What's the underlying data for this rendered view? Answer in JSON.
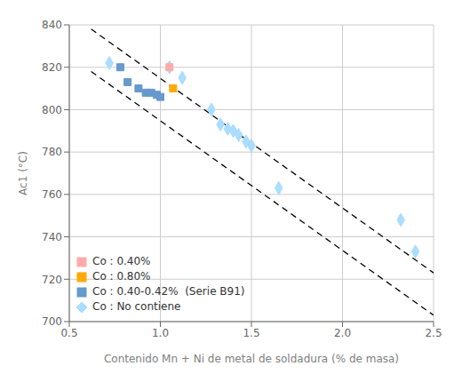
{
  "chart_data": {
    "type": "scatter",
    "xlabel": "Contenido Mn + Ni de metal de soldadura (% de masa)",
    "ylabel": "Ac1 (°C)",
    "xlim": [
      0.5,
      2.5
    ],
    "ylim": [
      700,
      840
    ],
    "xticks": [
      0.5,
      {
        "value": 1.0,
        "label": "1.0"
      },
      1.5,
      {
        "value": 2.0,
        "label": "2.0"
      },
      2.5
    ],
    "yticks": [
      700,
      720,
      740,
      760,
      780,
      800,
      820,
      840
    ],
    "grid": true,
    "legend": "lower left",
    "series": [
      {
        "name": "Co : 0.40%",
        "color": "#ffaaaa",
        "marker": "square",
        "x": [
          1.05
        ],
        "values": [
          820
        ]
      },
      {
        "name": "Co : 0.80%",
        "color": "#ffaa00",
        "marker": "square",
        "x": [
          1.07
        ],
        "values": [
          810
        ]
      },
      {
        "name": "Co : 0.40-0.42%  (Serie B91)",
        "color": "#6699cc",
        "marker": "square",
        "x": [
          0.78,
          0.82,
          0.88,
          0.92,
          0.95,
          0.98,
          1.0
        ],
        "values": [
          820,
          813,
          810,
          808,
          808,
          807,
          806
        ]
      },
      {
        "name": "Co : No contiene",
        "color": "#aaddff",
        "marker": "diamond",
        "x": [
          0.72,
          1.05,
          1.12,
          1.28,
          1.33,
          1.37,
          1.4,
          1.43,
          1.47,
          1.5,
          1.65,
          2.32,
          2.4
        ],
        "values": [
          822,
          820,
          815,
          800,
          793,
          791,
          790,
          788,
          785,
          783,
          763,
          748,
          733
        ]
      },
      {
        "type": "line",
        "color": "#000000",
        "line_style": "dashed",
        "x": [
          0.62,
          2.5
        ],
        "values": [
          838,
          723
        ]
      },
      {
        "type": "line",
        "color": "#000000",
        "line_style": "dashed",
        "x": [
          0.62,
          2.5
        ],
        "values": [
          818,
          703
        ]
      }
    ]
  }
}
